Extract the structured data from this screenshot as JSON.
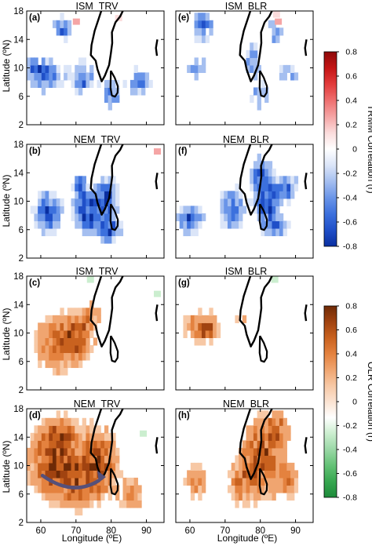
{
  "panels": [
    {
      "id": "a",
      "label": "(a)",
      "title": "ISM_TRV",
      "field": "TRMM",
      "kind": "trmm_a"
    },
    {
      "id": "b",
      "label": "(b)",
      "title": "NEM_TRV",
      "field": "TRMM",
      "kind": "trmm_b"
    },
    {
      "id": "c",
      "label": "(c)",
      "title": "ISM_TRV",
      "field": "OLR",
      "kind": "olr_c"
    },
    {
      "id": "d",
      "label": "(d)",
      "title": "NEM_TRV",
      "field": "OLR",
      "kind": "olr_d"
    },
    {
      "id": "e",
      "label": "(e)",
      "title": "ISM_BLR",
      "field": "TRMM",
      "kind": "trmm_e"
    },
    {
      "id": "f",
      "label": "(f)",
      "title": "NEM_BLR",
      "field": "TRMM",
      "kind": "trmm_f"
    },
    {
      "id": "g",
      "label": "(g)",
      "title": "ISM_BLR",
      "field": "OLR",
      "kind": "olr_g"
    },
    {
      "id": "h",
      "label": "(h)",
      "title": "NEM_BLR",
      "field": "OLR",
      "kind": "olr_h"
    }
  ],
  "axes": {
    "xlabel": "Longitude (ºE)",
    "ylabel": "Latitude (ºN)",
    "xlim": [
      56,
      95
    ],
    "ylim": [
      2,
      18
    ],
    "xticks": [
      60,
      70,
      80,
      90
    ],
    "xticklabels": [
      "60",
      "70",
      "80",
      "90"
    ],
    "yticks": [
      2,
      6,
      10,
      14,
      18
    ],
    "yticklabels": [
      "2",
      "6",
      "10",
      "14",
      "18"
    ]
  },
  "colorbars": [
    {
      "id": "trmm",
      "label": "TRMM Correlation (r)",
      "ticks": [
        0.8,
        0.6,
        0.4,
        0.2,
        0,
        -0.2,
        -0.4,
        -0.6,
        -0.8
      ],
      "ticklabels": [
        "0.8",
        "0.6",
        "0.4",
        "0.2",
        "0",
        "-0.2",
        "-0.4",
        "-0.6",
        "-0.8"
      ],
      "colors_low_to_high": [
        "#0a2fa0",
        "#1f4fc8",
        "#3c70dd",
        "#6a95e8",
        "#a5bff0",
        "#dbe5f8",
        "#ffffff",
        "#fbdcdc",
        "#f5a5a5",
        "#ee6f6f",
        "#e23b3b",
        "#c41515",
        "#8e0909"
      ]
    },
    {
      "id": "olr",
      "label": "OLR Correlation (r)",
      "ticks": [
        0.8,
        0.6,
        0.4,
        0.2,
        0,
        -0.2,
        -0.4,
        -0.6,
        -0.8
      ],
      "ticklabels": [
        "0.8",
        "0.6",
        "0.4",
        "0.2",
        "0",
        "-0.2",
        "-0.4",
        "-0.6",
        "-0.8"
      ],
      "colors_low_to_high": [
        "#1d8a3a",
        "#37a750",
        "#64c276",
        "#9ad8a6",
        "#cbeecf",
        "#ffffff",
        "#fbe3d2",
        "#f7c8a5",
        "#f0a570",
        "#e4823f",
        "#c9621f",
        "#a14310",
        "#6e2a06"
      ]
    }
  ],
  "colors": {
    "coast": "#000000",
    "arrow": "#55507a",
    "frame": "#000000"
  }
}
